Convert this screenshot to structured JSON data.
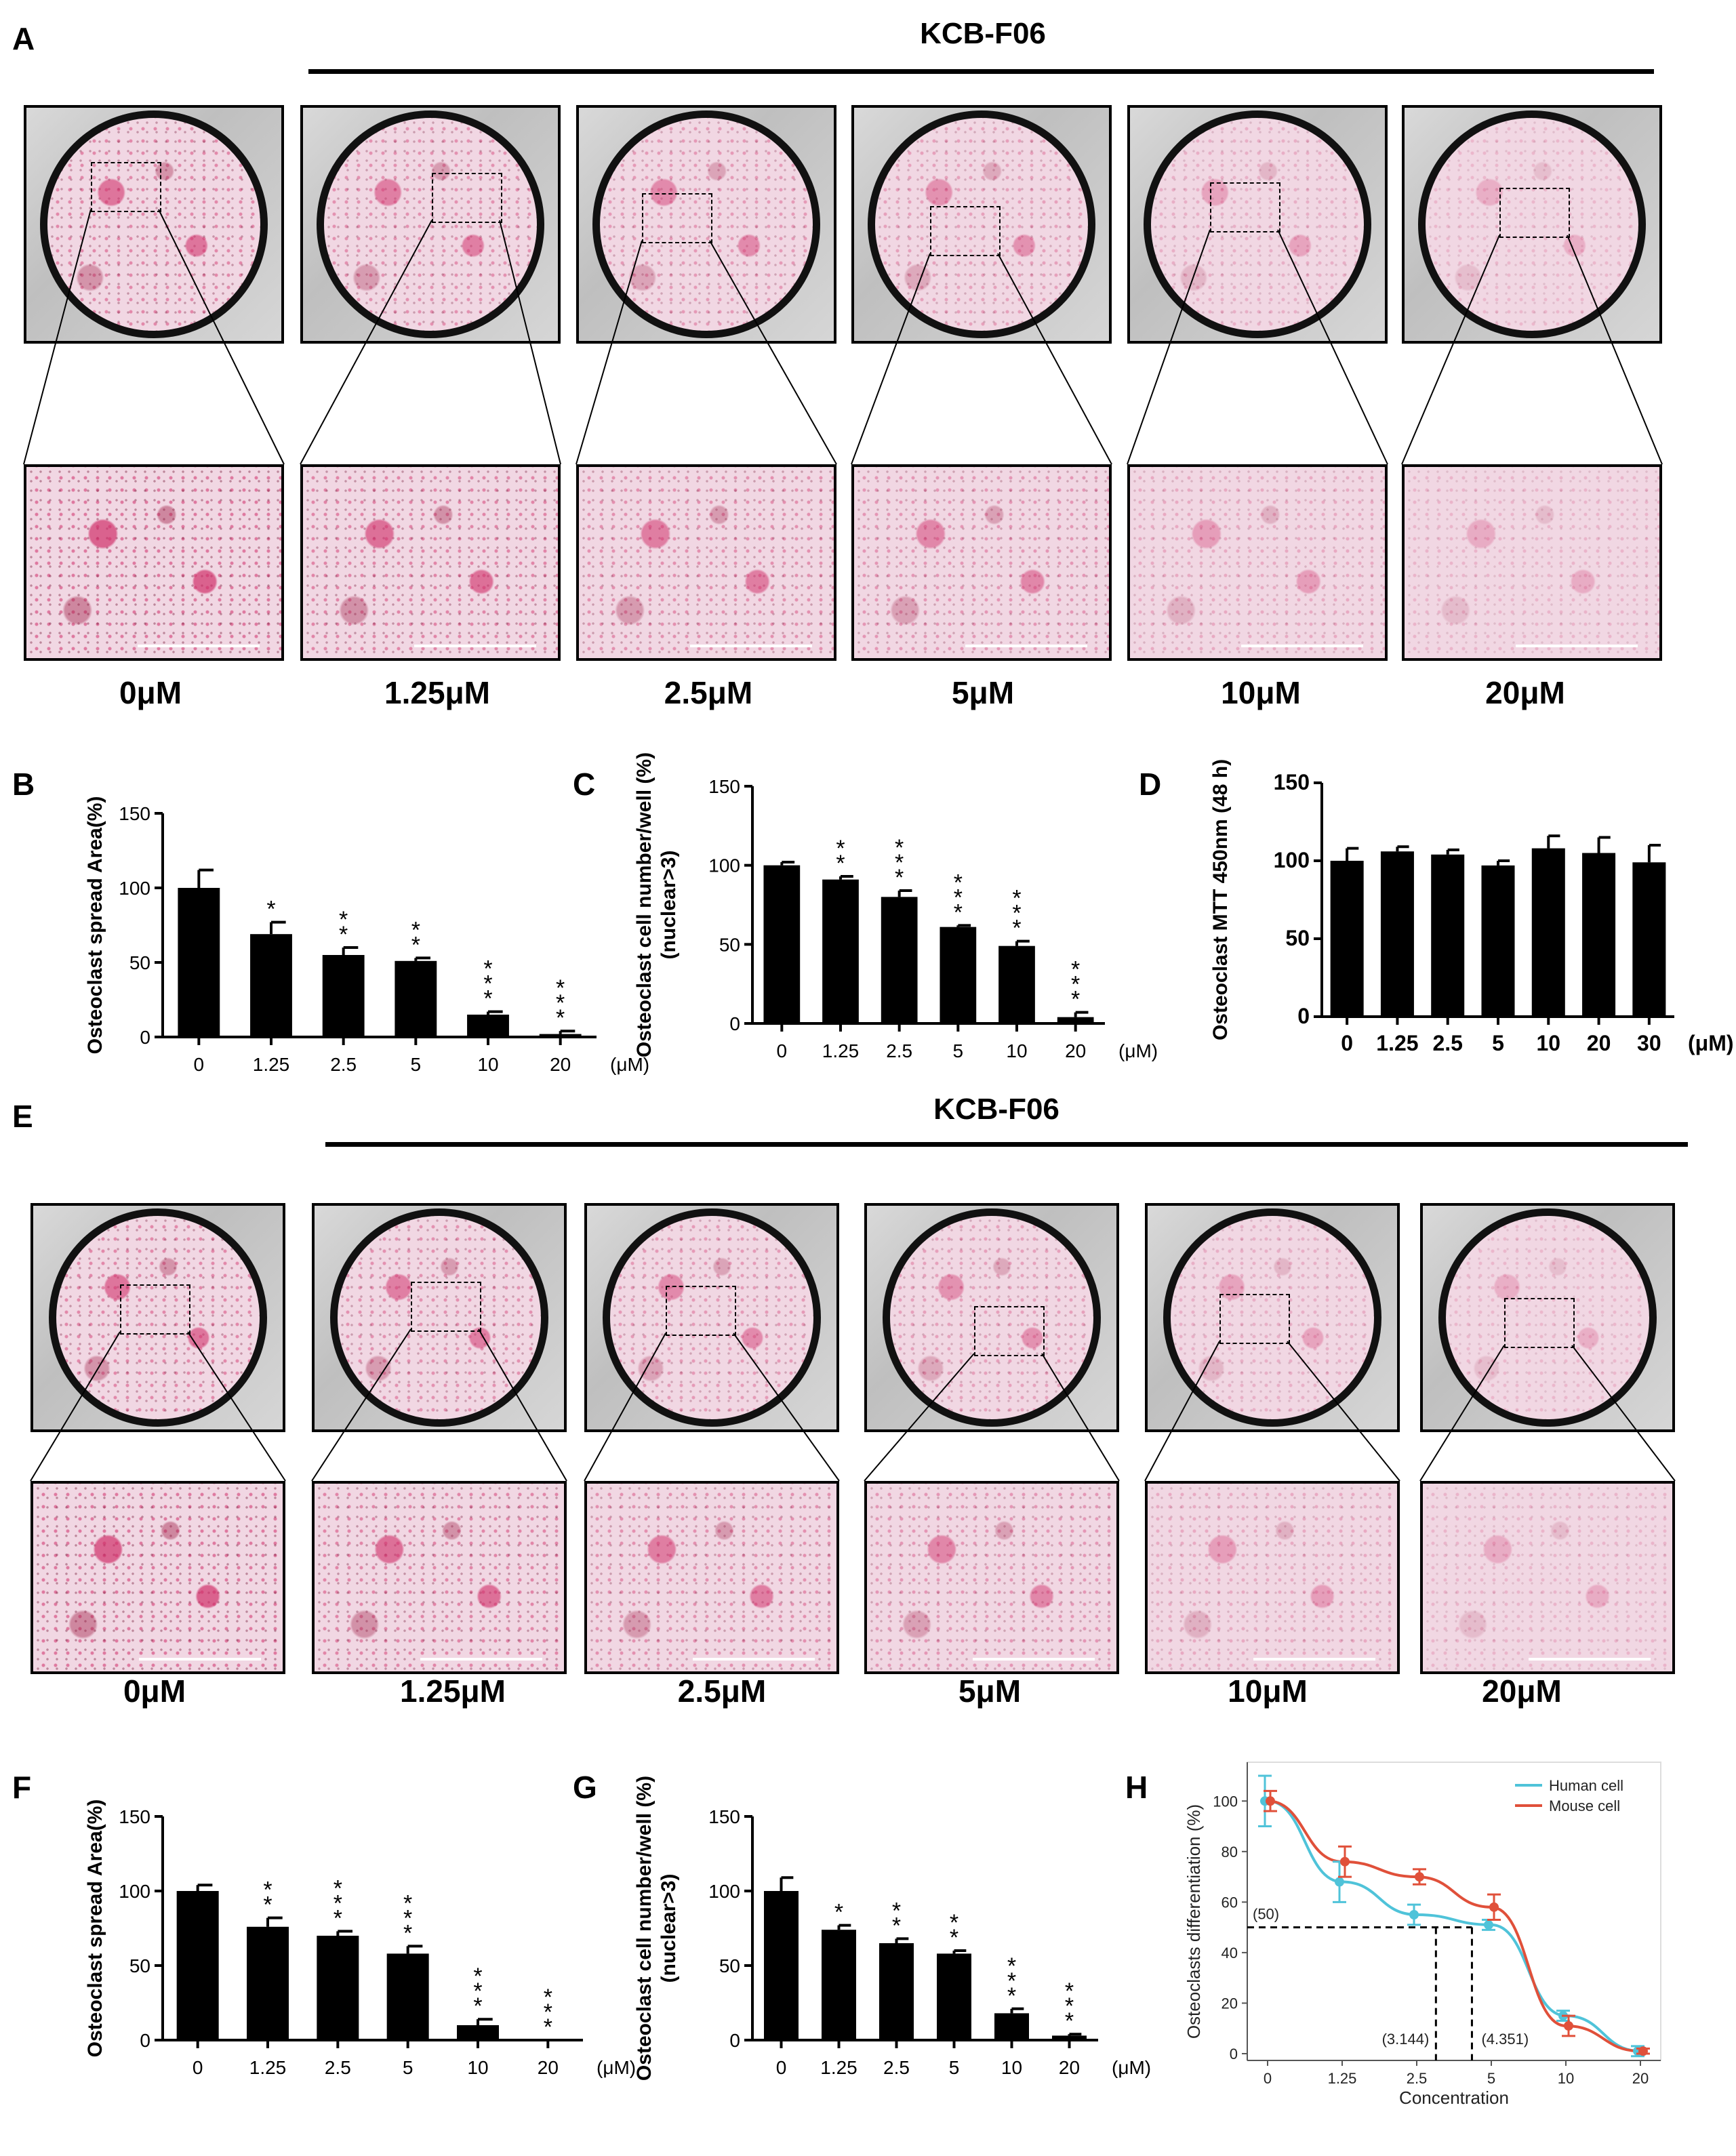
{
  "panel_labels": {
    "A": "A",
    "B": "B",
    "C": "C",
    "D": "D",
    "E": "E",
    "F": "F",
    "G": "G",
    "H": "H"
  },
  "group_a_title": "KCB-F06",
  "group_e_title": "KCB-F06",
  "doses_a": [
    "0μM",
    "1.25μM",
    "2.5μM",
    "5μM",
    "10μM",
    "20μM"
  ],
  "doses_e": [
    "0μM",
    "1.25μM",
    "2.5μM",
    "5μM",
    "10μM",
    "20μM"
  ],
  "colors": {
    "bar": "#000000",
    "human": "#4fc3d9",
    "mouse": "#e0503a",
    "stain_dense": "#d0306a",
    "stain_light": "#f1d7e3"
  },
  "stain_intensity_a": [
    1.0,
    0.85,
    0.7,
    0.6,
    0.35,
    0.2
  ],
  "stain_intensity_e": [
    1.0,
    0.85,
    0.7,
    0.6,
    0.35,
    0.2
  ],
  "chart_data": [
    {
      "id": "B",
      "type": "bar",
      "categories": [
        "0",
        "1.25",
        "2.5",
        "5",
        "10",
        "20"
      ],
      "values": [
        100,
        69,
        55,
        51,
        15,
        2
      ],
      "errors": [
        12,
        8,
        5,
        2,
        2,
        2
      ],
      "sig": [
        "",
        "*",
        "**",
        "**",
        "***",
        "***"
      ],
      "ylabel": "Osteoclast spread Area(%)",
      "xunit": "(μM)",
      "ylim": [
        0,
        150
      ],
      "yticks": [
        0,
        50,
        100,
        150
      ]
    },
    {
      "id": "C",
      "type": "bar",
      "categories": [
        "0",
        "1.25",
        "2.5",
        "5",
        "10",
        "20"
      ],
      "values": [
        100,
        91,
        80,
        61,
        49,
        4
      ],
      "errors": [
        2,
        2,
        4,
        1,
        3,
        3
      ],
      "sig": [
        "",
        "**",
        "***",
        "***",
        "***",
        "***"
      ],
      "ylabel": "Osteoclast cell number/well (%)",
      "ylabel2": "(nuclear>3)",
      "xunit": "(μM)",
      "ylim": [
        0,
        150
      ],
      "yticks": [
        0,
        50,
        100,
        150
      ]
    },
    {
      "id": "D",
      "type": "bar",
      "categories": [
        "0",
        "1.25",
        "2.5",
        "5",
        "10",
        "20",
        "30"
      ],
      "values": [
        100,
        106,
        104,
        97,
        108,
        105,
        99
      ],
      "errors": [
        8,
        3,
        3,
        3,
        8,
        10,
        11
      ],
      "sig": [
        "",
        "",
        "",
        "",
        "",
        "",
        ""
      ],
      "ylabel": "Osteoclast MTT 450nm (48 h)",
      "xunit": "(μM)",
      "ylim": [
        0,
        150
      ],
      "yticks": [
        0,
        50,
        100,
        150
      ]
    },
    {
      "id": "F",
      "type": "bar",
      "categories": [
        "0",
        "1.25",
        "2.5",
        "5",
        "10",
        "20"
      ],
      "values": [
        100,
        76,
        70,
        58,
        10,
        0
      ],
      "errors": [
        4,
        6,
        3,
        5,
        4,
        0
      ],
      "sig": [
        "",
        "**",
        "***",
        "***",
        "***",
        "***"
      ],
      "ylabel": "Osteoclast spread Area(%)",
      "xunit": "(μM)",
      "ylim": [
        0,
        150
      ],
      "yticks": [
        0,
        50,
        100,
        150
      ]
    },
    {
      "id": "G",
      "type": "bar",
      "categories": [
        "0",
        "1.25",
        "2.5",
        "5",
        "10",
        "20"
      ],
      "values": [
        100,
        74,
        65,
        58,
        18,
        3
      ],
      "errors": [
        9,
        3,
        3,
        2,
        3,
        1
      ],
      "sig": [
        "",
        "*",
        "**",
        "**",
        "***",
        "***"
      ],
      "ylabel": "Osteoclast cell number/well (%)",
      "ylabel2": "(nuclear>3)",
      "xunit": "(μM)",
      "ylim": [
        0,
        150
      ],
      "yticks": [
        0,
        50,
        100,
        150
      ]
    },
    {
      "id": "H",
      "type": "line",
      "x": [
        "0",
        "1.25",
        "2.5",
        "5",
        "10",
        "20"
      ],
      "series": [
        {
          "name": "Human cell",
          "values": [
            100,
            68,
            55,
            51,
            15,
            1
          ],
          "errors": [
            10,
            8,
            4,
            2,
            2,
            2
          ]
        },
        {
          "name": "Mouse cell",
          "values": [
            100,
            76,
            70,
            58,
            11,
            1
          ],
          "errors": [
            4,
            6,
            3,
            5,
            4,
            1
          ]
        }
      ],
      "ylabel": "Osteoclasts differentiation (%)",
      "xlabel": "Concentration",
      "ylim": [
        0,
        110
      ],
      "yticks": [
        0,
        20,
        40,
        60,
        80,
        100
      ],
      "ref_y_label": "(50)",
      "ref_x_labels": [
        "(3.144)",
        "(4.351)"
      ],
      "ref_x": [
        3.144,
        4.351
      ],
      "legend_position": "top-right"
    }
  ]
}
